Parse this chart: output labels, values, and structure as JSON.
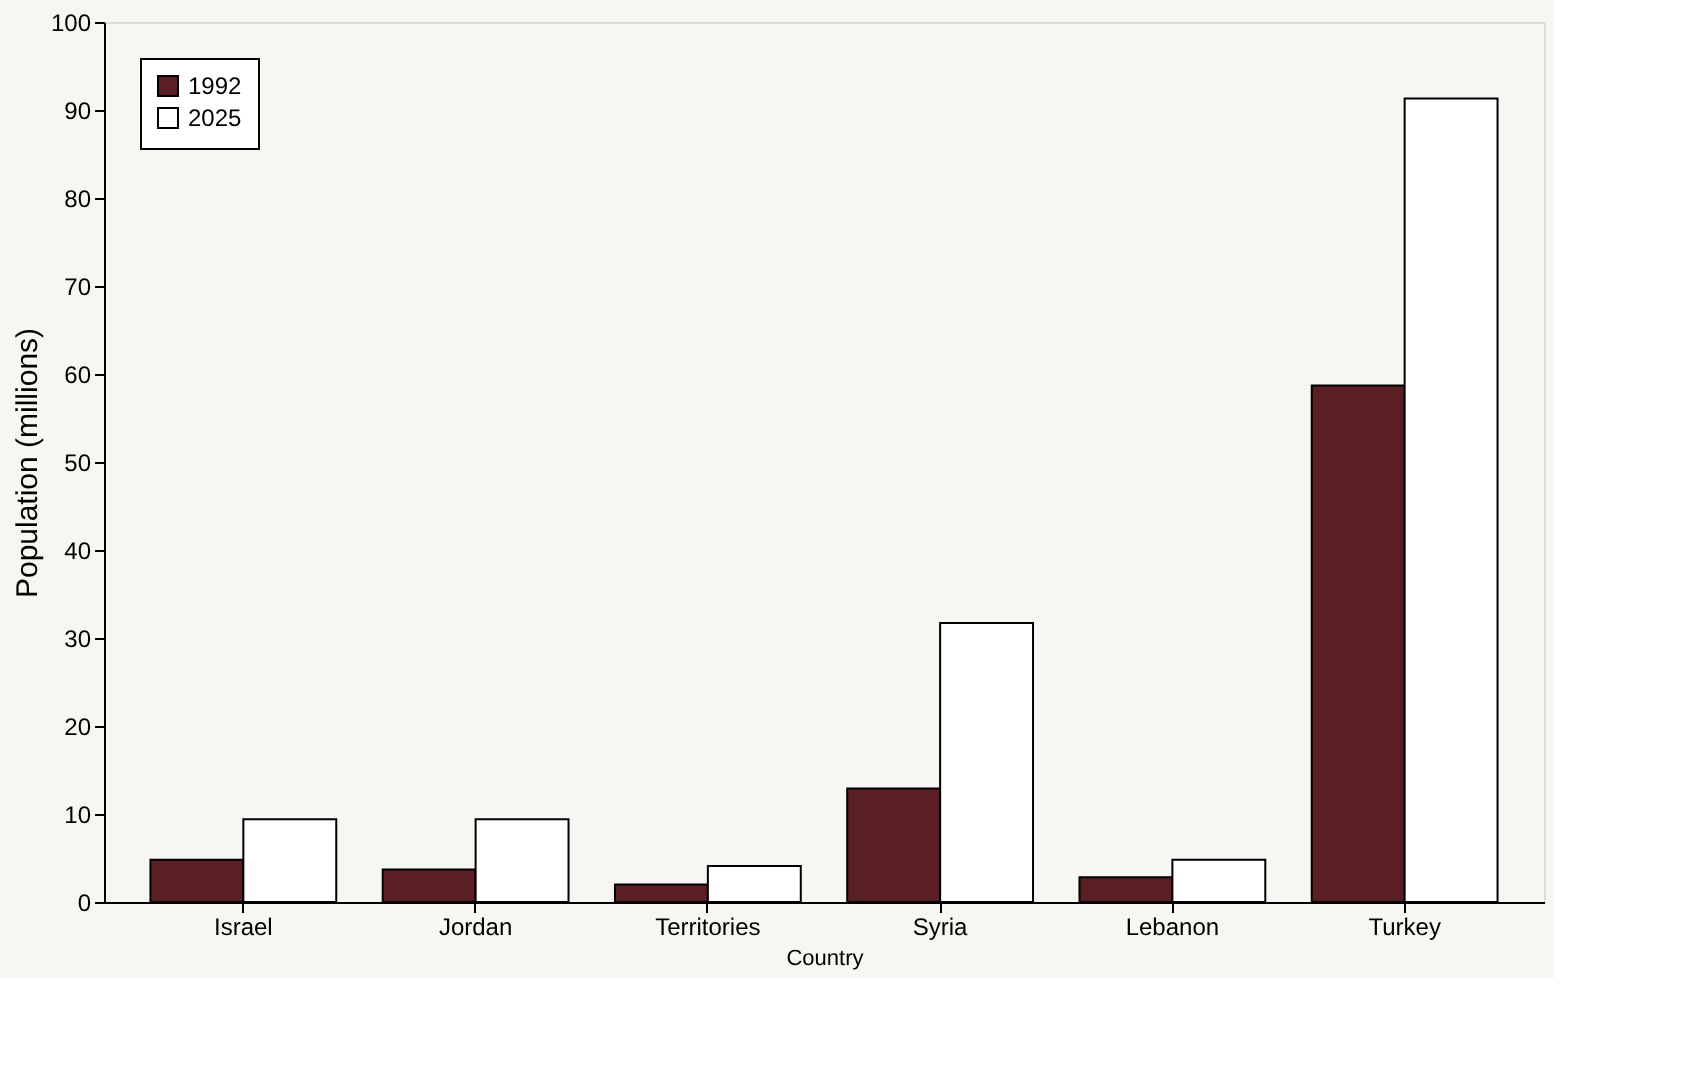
{
  "chart_data": {
    "type": "bar",
    "xlabel": "Country",
    "ylabel": "Population (millions)",
    "categories": [
      "Israel",
      "Jordan",
      "Territories",
      "Syria",
      "Lebanon",
      "Turkey"
    ],
    "series": [
      {
        "name": "1992",
        "color": "#5a1f25",
        "values": [
          4.8,
          3.7,
          2,
          12.9,
          2.8,
          58.7
        ]
      },
      {
        "name": "2025",
        "color": "#ffffff",
        "values": [
          9.4,
          9.4,
          4.1,
          31.7,
          4.8,
          91.3
        ]
      }
    ],
    "ylim": [
      0,
      100
    ],
    "yticks": [
      0,
      10,
      20,
      30,
      40,
      50,
      60,
      70,
      80,
      90,
      100
    ],
    "grid": false,
    "legend": "top left"
  }
}
